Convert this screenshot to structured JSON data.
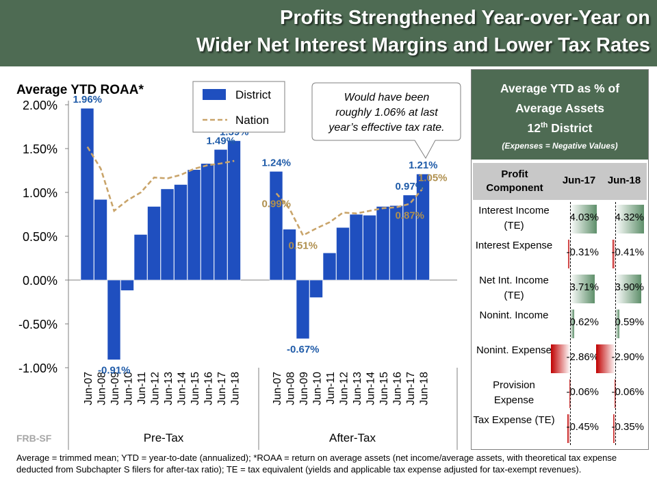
{
  "title": {
    "line1": "Profits Strengthened Year-over-Year on",
    "line2": "Wider Net Interest Margins and Lower Tax Rates"
  },
  "chart_data": {
    "type": "bar",
    "title": "Average YTD ROAA*",
    "yticks": [
      "2.00%",
      "1.50%",
      "1.00%",
      "0.50%",
      "0.00%",
      "-0.50%",
      "-1.00%"
    ],
    "ylim": [
      -1.0,
      2.0
    ],
    "categories": [
      "Jun-07",
      "Jun-08",
      "Jun-09",
      "Jun-10",
      "Jun-11",
      "Jun-12",
      "Jun-13",
      "Jun-14",
      "Jun-15",
      "Jun-16",
      "Jun-17",
      "Jun-18"
    ],
    "legend": {
      "district": "District",
      "nation": "Nation"
    },
    "colors": {
      "district": "#1f4fbf",
      "nation": "#c9a46a",
      "district_label": "#1f5ba8",
      "nation_label": "#b0904f"
    },
    "annotation": "Would have been roughly 1.06% at last year’s effective tax rate.",
    "groups": [
      {
        "name": "Pre-Tax",
        "district": [
          1.96,
          0.92,
          -0.91,
          -0.12,
          0.52,
          0.84,
          1.04,
          1.09,
          1.26,
          1.33,
          1.49,
          1.59
        ],
        "nation": [
          1.52,
          1.27,
          0.79,
          0.91,
          1.0,
          1.17,
          1.16,
          1.2,
          1.27,
          1.31,
          1.33,
          1.36
        ],
        "district_labels": [
          {
            "index": 0,
            "text": "1.96%"
          },
          {
            "index": 2,
            "text": "-0.91%"
          },
          {
            "index": 10,
            "text": "1.49%"
          },
          {
            "index": 11,
            "text": "1.59%"
          }
        ],
        "nation_labels": []
      },
      {
        "name": "After-Tax",
        "district": [
          1.24,
          0.58,
          -0.67,
          -0.2,
          0.31,
          0.6,
          0.75,
          0.74,
          0.84,
          0.85,
          0.97,
          1.21
        ],
        "nation": [
          0.99,
          0.81,
          0.51,
          0.59,
          0.66,
          0.77,
          0.76,
          0.79,
          0.82,
          0.83,
          0.87,
          1.05
        ],
        "district_labels": [
          {
            "index": 0,
            "text": "1.24%"
          },
          {
            "index": 2,
            "text": "-0.67%"
          },
          {
            "index": 10,
            "text": "0.97%"
          },
          {
            "index": 11,
            "text": "1.21%"
          }
        ],
        "nation_labels": [
          {
            "index": 0,
            "text": "0.99%"
          },
          {
            "index": 2,
            "text": "0.51%"
          },
          {
            "index": 10,
            "text": "0.87%"
          },
          {
            "index": 11,
            "text": "1.05%"
          }
        ]
      }
    ]
  },
  "table": {
    "header_line1": "Average YTD as % of",
    "header_line2": "Average Assets",
    "header_line3_main": "12",
    "header_line3_sup": "th",
    "header_line3_rest": " District",
    "header_line4": "(Expenses = Negative Values)",
    "col_component": "Profit Component",
    "col_jun17": "Jun-17",
    "col_jun18": "Jun-18",
    "rows": [
      {
        "label": "Interest Income (TE)",
        "jun17": "4.03%",
        "jun18": "4.32%",
        "v17": 4.03,
        "v18": 4.32
      },
      {
        "label": "Interest Expense",
        "jun17": "-0.31%",
        "jun18": "-0.41%",
        "v17": -0.31,
        "v18": -0.41
      },
      {
        "label": "Net Int. Income (TE)",
        "jun17": "3.71%",
        "jun18": "3.90%",
        "v17": 3.71,
        "v18": 3.9
      },
      {
        "label": "Nonint. Income",
        "jun17": "0.62%",
        "jun18": "0.59%",
        "v17": 0.62,
        "v18": 0.59
      },
      {
        "label": "Nonint. Expense",
        "jun17": "-2.86%",
        "jun18": "-2.90%",
        "v17": -2.86,
        "v18": -2.9
      },
      {
        "label": "Provision Expense",
        "jun17": "-0.06%",
        "jun18": "-0.06%",
        "v17": -0.06,
        "v18": -0.06
      },
      {
        "label": "Tax Expense (TE)",
        "jun17": "-0.45%",
        "jun18": "-0.35%",
        "v17": -0.45,
        "v18": -0.35
      }
    ]
  },
  "source": "FRB-SF",
  "footnote": "Average = trimmed mean; YTD = year-to-date (annualized); *ROAA = return on average assets (net income/average assets, with theoretical tax expense deducted from Subchapter S filers for after-tax ratio); TE = tax equivalent (yields and applicable tax expense adjusted for tax-exempt revenues)."
}
